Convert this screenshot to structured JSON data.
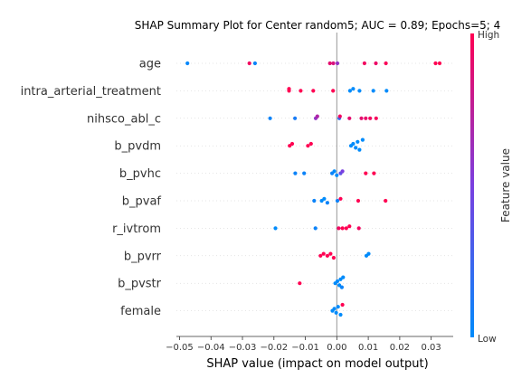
{
  "chart_data": {
    "type": "scatter",
    "title": "SHAP Summary Plot for Center random5; AUC = 0.89; Epochs=5; 4",
    "xlabel": "SHAP value (impact on model output)",
    "xlim": [
      -0.051,
      0.037
    ],
    "xticks": [
      -0.05,
      -0.04,
      -0.03,
      -0.02,
      -0.01,
      0.0,
      0.01,
      0.02,
      0.03
    ],
    "xtick_labels": [
      "−0.05",
      "−0.04",
      "−0.03",
      "−0.02",
      "−0.01",
      "0.00",
      "0.01",
      "0.02",
      "0.03"
    ],
    "colorbar": {
      "label": "Feature value",
      "high": "High",
      "low": "Low",
      "low_color": "#008bfb",
      "high_color": "#ff0052"
    },
    "zero_line_color": "#999999",
    "grid": false,
    "features": [
      {
        "name": "age",
        "points": [
          [
            -0.0475,
            0.02
          ],
          [
            -0.0278,
            0.95
          ],
          [
            -0.026,
            0.05
          ],
          [
            -0.0022,
            0.9
          ],
          [
            -0.0011,
            0.85
          ],
          [
            0.0002,
            0.6
          ],
          [
            0.0088,
            0.95
          ],
          [
            0.0124,
            0.93
          ],
          [
            0.0156,
            0.98
          ],
          [
            0.0314,
            1.0
          ],
          [
            0.0327,
            1.0
          ]
        ]
      },
      {
        "name": "intra_arterial_treatment",
        "points": [
          [
            -0.0152,
            1.0
          ],
          [
            -0.0152,
            1.0
          ],
          [
            -0.0115,
            1.0
          ],
          [
            -0.0075,
            1.0
          ],
          [
            -0.0012,
            1.0
          ],
          [
            0.0042,
            0.0
          ],
          [
            0.0052,
            0.0
          ],
          [
            0.0072,
            0.0
          ],
          [
            0.0116,
            0.0
          ],
          [
            0.0158,
            0.0
          ]
        ]
      },
      {
        "name": "nihsco_abl_c",
        "points": [
          [
            -0.0212,
            0.05
          ],
          [
            -0.0133,
            0.1
          ],
          [
            -0.0067,
            0.6
          ],
          [
            -0.0062,
            0.7
          ],
          [
            0.0008,
            0.2
          ],
          [
            0.001,
            0.95
          ],
          [
            0.004,
            0.9
          ],
          [
            0.0078,
            0.9
          ],
          [
            0.0092,
            0.92
          ],
          [
            0.0106,
            0.95
          ],
          [
            0.0125,
            0.97
          ]
        ]
      },
      {
        "name": "b_pvdm",
        "points": [
          [
            -0.015,
            1.0
          ],
          [
            -0.0142,
            1.0
          ],
          [
            -0.0092,
            1.0
          ],
          [
            -0.0082,
            1.0
          ],
          [
            0.0045,
            0.0
          ],
          [
            0.0052,
            0.0
          ],
          [
            0.006,
            0.0
          ],
          [
            0.0066,
            0.0
          ],
          [
            0.0072,
            0.0
          ],
          [
            0.0082,
            0.0
          ]
        ]
      },
      {
        "name": "b_pvhc",
        "points": [
          [
            -0.0132,
            0.05
          ],
          [
            -0.0104,
            0.05
          ],
          [
            -0.0015,
            0.05
          ],
          [
            -0.0008,
            0.0
          ],
          [
            0.0,
            0.0
          ],
          [
            0.0012,
            0.4
          ],
          [
            0.0018,
            0.5
          ],
          [
            0.0092,
            1.0
          ],
          [
            0.0118,
            1.0
          ]
        ]
      },
      {
        "name": "b_pvaf",
        "points": [
          [
            -0.0072,
            0.05
          ],
          [
            -0.0048,
            0.0
          ],
          [
            -0.004,
            0.0
          ],
          [
            -0.003,
            0.05
          ],
          [
            0.0002,
            0.05
          ],
          [
            0.0012,
            1.0
          ],
          [
            0.0068,
            1.0
          ],
          [
            0.0155,
            1.0
          ]
        ]
      },
      {
        "name": "r_ivtrom",
        "points": [
          [
            -0.0195,
            0.0
          ],
          [
            -0.0068,
            0.05
          ],
          [
            0.0006,
            0.95
          ],
          [
            0.0018,
            1.0
          ],
          [
            0.003,
            1.0
          ],
          [
            0.004,
            1.0
          ],
          [
            0.007,
            0.95
          ]
        ]
      },
      {
        "name": "b_pvrr",
        "points": [
          [
            -0.0052,
            1.0
          ],
          [
            -0.0042,
            1.0
          ],
          [
            -0.003,
            1.0
          ],
          [
            -0.002,
            1.0
          ],
          [
            -0.001,
            1.0
          ],
          [
            0.0094,
            0.0
          ],
          [
            0.0101,
            0.0
          ]
        ]
      },
      {
        "name": "b_pvstr",
        "points": [
          [
            -0.0118,
            1.0
          ],
          [
            -0.0005,
            0.0
          ],
          [
            0.0002,
            0.0
          ],
          [
            0.0008,
            0.0
          ],
          [
            0.0012,
            0.0
          ],
          [
            0.0016,
            0.05
          ],
          [
            0.002,
            0.0
          ]
        ]
      },
      {
        "name": "female",
        "points": [
          [
            -0.0014,
            0.0
          ],
          [
            -0.0008,
            0.0
          ],
          [
            -0.0002,
            0.0
          ],
          [
            0.0004,
            0.0
          ],
          [
            0.0012,
            0.0
          ],
          [
            0.0018,
            1.0
          ]
        ]
      }
    ]
  }
}
